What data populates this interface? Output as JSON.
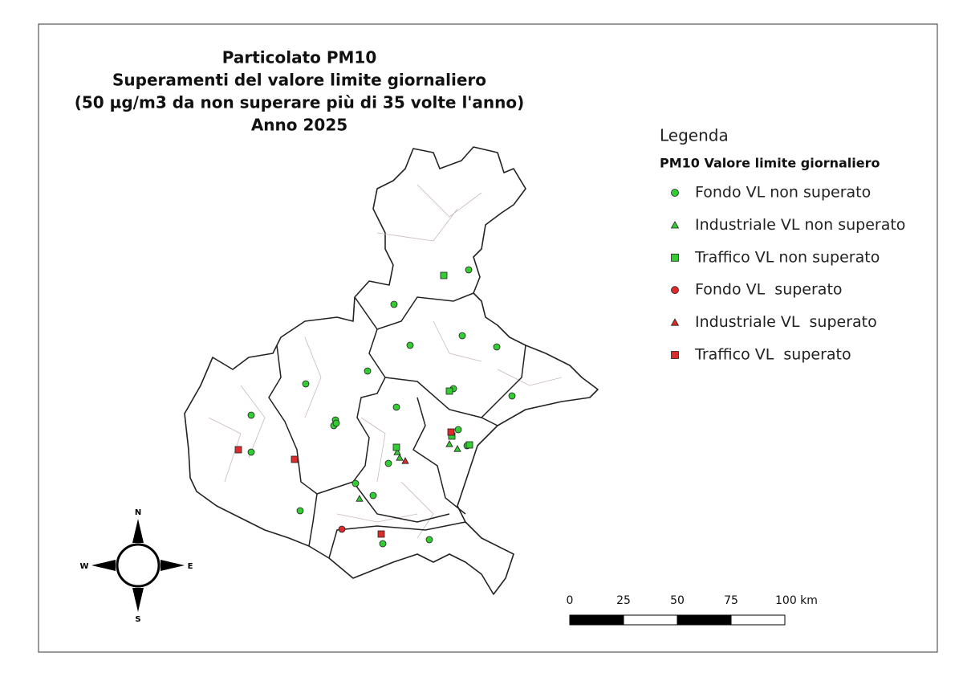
{
  "title": {
    "lines": [
      "Particolato PM10",
      "Superamenti del valore limite giornaliero",
      "(50 µg/m3 da non superare più di 35 volte l'anno)",
      "Anno 2025"
    ]
  },
  "legend": {
    "heading": "Legenda",
    "group": "PM10 Valore limite giornaliero",
    "items": [
      {
        "label": "Fondo VL non superato",
        "shape": "circle",
        "color": "#33cc33"
      },
      {
        "label": "Industriale VL non superato",
        "shape": "triangle",
        "color": "#33cc33"
      },
      {
        "label": "Traffico VL non superato",
        "shape": "square",
        "color": "#33cc33"
      },
      {
        "label": "Fondo VL  superato",
        "shape": "circle",
        "color": "#dd2b2b"
      },
      {
        "label": "Industriale VL  superato",
        "shape": "triangle",
        "color": "#dd2b2b"
      },
      {
        "label": "Traffico VL  superato",
        "shape": "square",
        "color": "#dd2b2b"
      }
    ]
  },
  "compass": {
    "north": "N",
    "south": "S",
    "east": "E",
    "west": "W"
  },
  "scale_bar": {
    "ticks": [
      0,
      25,
      50,
      75,
      {
        "value": 100,
        "label": "100 km"
      }
    ]
  }
}
